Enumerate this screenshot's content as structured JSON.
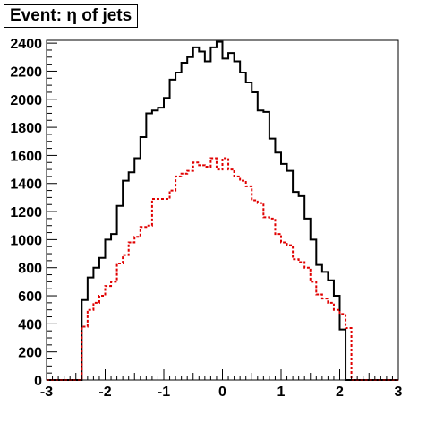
{
  "chart_data": {
    "type": "line",
    "title": "Event: η of jets",
    "xlabel": "",
    "ylabel": "",
    "xlim": [
      -3,
      3
    ],
    "ylim": [
      0,
      2420
    ],
    "bin_edges_start": -3,
    "bin_width": 0.1,
    "grid": false,
    "legend": "none",
    "x_ticks": [
      -3,
      -2,
      -1,
      0,
      1,
      2,
      3
    ],
    "y_ticks": [
      0,
      200,
      400,
      600,
      800,
      1000,
      1200,
      1400,
      1600,
      1800,
      2000,
      2200,
      2400
    ],
    "series": [
      {
        "color": "#000000",
        "style": "solid",
        "values": [
          0,
          0,
          0,
          0,
          0,
          0,
          570,
          730,
          800,
          870,
          1000,
          1040,
          1240,
          1420,
          1480,
          1580,
          1730,
          1900,
          1920,
          1940,
          2010,
          2140,
          2190,
          2260,
          2300,
          2370,
          2340,
          2270,
          2370,
          2410,
          2290,
          2330,
          2270,
          2190,
          2120,
          2050,
          1920,
          1910,
          1720,
          1620,
          1540,
          1490,
          1340,
          1310,
          1150,
          1000,
          820,
          770,
          710,
          600,
          360,
          0,
          0,
          0,
          0,
          0,
          0,
          0,
          0,
          0
        ]
      },
      {
        "color": "#e00000",
        "style": "dashed",
        "values": [
          0,
          0,
          0,
          0,
          0,
          0,
          380,
          500,
          550,
          600,
          670,
          700,
          830,
          890,
          980,
          1020,
          1090,
          1100,
          1290,
          1290,
          1290,
          1350,
          1450,
          1470,
          1490,
          1550,
          1530,
          1520,
          1580,
          1500,
          1580,
          1500,
          1450,
          1420,
          1380,
          1280,
          1260,
          1160,
          1150,
          1040,
          980,
          960,
          860,
          840,
          800,
          700,
          610,
          580,
          550,
          500,
          470,
          370,
          0,
          0,
          0,
          0,
          0,
          0,
          0,
          0
        ]
      }
    ]
  }
}
